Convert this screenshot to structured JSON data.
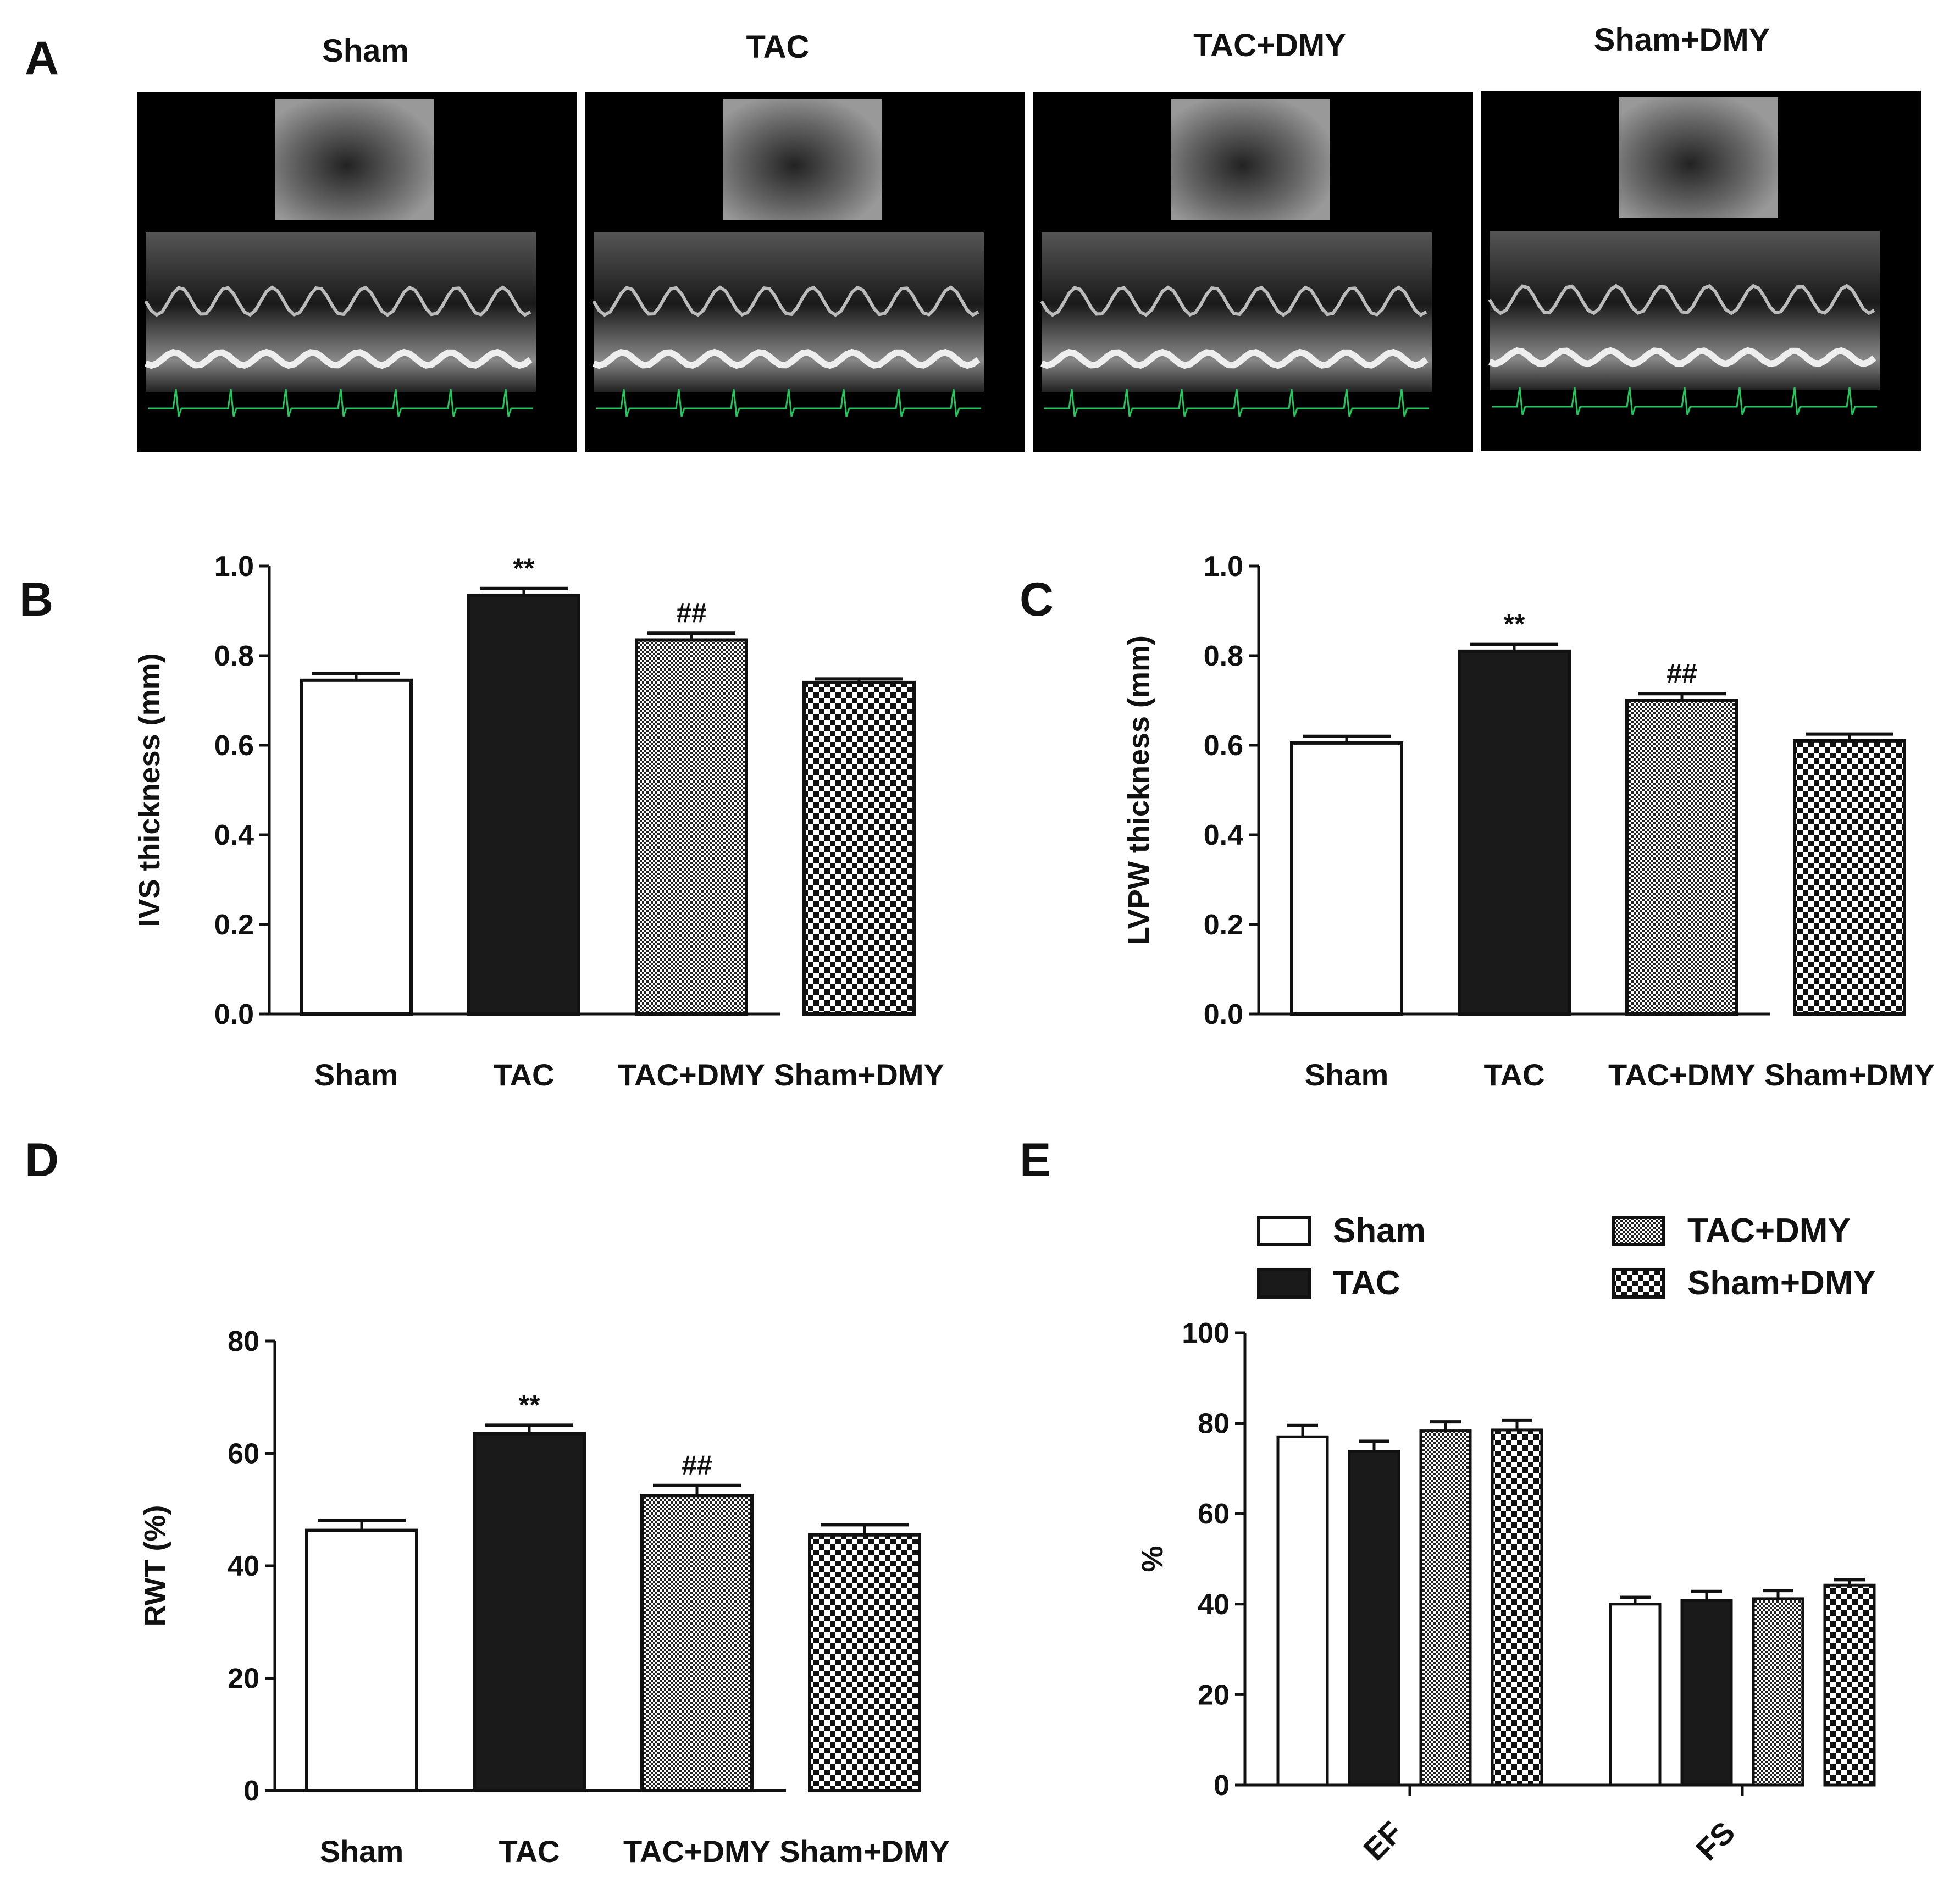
{
  "panel_letters": {
    "a": "A",
    "b": "B",
    "c": "C",
    "d": "D",
    "e": "E"
  },
  "echo_titles": [
    "Sham",
    "TAC",
    "TAC+DMY",
    "Sham+DMY"
  ],
  "colors": {
    "sham": "#ffffff",
    "tac": "#1a1a1a",
    "tac_dmy": "fine-checker-pattern",
    "sham_dmy": "coarse-checker-pattern",
    "echo_bg": "#000000",
    "ecg_trace": "#22c55e"
  },
  "chart_data": [
    {
      "id": "B",
      "type": "bar",
      "categories": [
        "Sham",
        "TAC",
        "TAC+DMY",
        "Sham+DMY"
      ],
      "values": [
        0.745,
        0.935,
        0.835,
        0.74
      ],
      "errors": [
        0.015,
        0.015,
        0.015,
        0.008
      ],
      "significance": [
        "",
        "**",
        "##",
        ""
      ],
      "ylabel": "IVS thickness (mm)",
      "xlabel": "",
      "ylim": [
        0,
        1.0
      ],
      "yticks": [
        "0.0",
        "0.2",
        "0.4",
        "0.6",
        "0.8",
        "1.0"
      ]
    },
    {
      "id": "C",
      "type": "bar",
      "categories": [
        "Sham",
        "TAC",
        "TAC+DMY",
        "Sham+DMY"
      ],
      "values": [
        0.605,
        0.81,
        0.7,
        0.61
      ],
      "errors": [
        0.015,
        0.015,
        0.015,
        0.015
      ],
      "significance": [
        "",
        "**",
        "##",
        ""
      ],
      "ylabel": "LVPW thickness (mm)",
      "xlabel": "",
      "ylim": [
        0,
        1.0
      ],
      "yticks": [
        "0.0",
        "0.2",
        "0.4",
        "0.6",
        "0.8",
        "1.0"
      ]
    },
    {
      "id": "D",
      "type": "bar",
      "categories": [
        "Sham",
        "TAC",
        "TAC+DMY",
        "Sham+DMY"
      ],
      "values": [
        46.3,
        63.5,
        52.5,
        45.5
      ],
      "errors": [
        1.8,
        1.5,
        1.8,
        1.8
      ],
      "significance": [
        "",
        "**",
        "##",
        ""
      ],
      "ylabel": "RWT (%)",
      "xlabel": "",
      "ylim": [
        0,
        80
      ],
      "yticks": [
        "0",
        "20",
        "40",
        "60",
        "80"
      ]
    },
    {
      "id": "E",
      "type": "bar",
      "categories": [
        "EF",
        "FS"
      ],
      "series": [
        {
          "name": "Sham",
          "values": [
            77,
            40
          ],
          "errors": [
            2.5,
            1.5
          ]
        },
        {
          "name": "TAC",
          "values": [
            73.8,
            40.8
          ],
          "errors": [
            2.2,
            2.0
          ]
        },
        {
          "name": "TAC+DMY",
          "values": [
            78.3,
            41.2
          ],
          "errors": [
            2.0,
            1.8
          ]
        },
        {
          "name": "Sham+DMY",
          "values": [
            78.5,
            44.2
          ],
          "errors": [
            2.2,
            1.2
          ]
        }
      ],
      "ylabel": "%",
      "xlabel": "",
      "ylim": [
        0,
        100
      ],
      "yticks": [
        "0",
        "20",
        "40",
        "60",
        "80",
        "100"
      ],
      "legend": "top"
    }
  ]
}
